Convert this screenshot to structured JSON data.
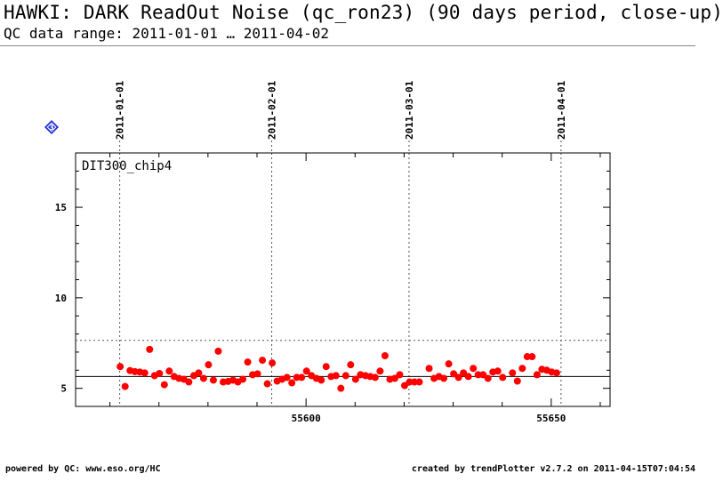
{
  "header": {
    "title": "HAWKI: DARK ReadOut Noise (qc_ron23) (90 days period, close-up)",
    "subtitle": "QC data range: 2011-01-01 … 2011-04-02"
  },
  "badge": {
    "label": "3",
    "color": "#1f2fd6"
  },
  "footer": {
    "left": "powered by QC: www.eso.org/HC",
    "right": "created by trendPlotter v2.7.2 on 2011-04-15T07:04:54"
  },
  "chart_data": {
    "type": "scatter",
    "title": "DIT300_chip4",
    "xlabel": "",
    "ylabel": "",
    "xlim": [
      55553,
      55662
    ],
    "ylim": [
      4,
      18
    ],
    "xticks": [
      55600,
      55650
    ],
    "yticks": [
      5,
      10,
      15
    ],
    "date_markers": [
      {
        "label": "2011-01-01",
        "x": 55562
      },
      {
        "label": "2011-02-01",
        "x": 55593
      },
      {
        "label": "2011-03-01",
        "x": 55621
      },
      {
        "label": "2011-04-01",
        "x": 55652
      }
    ],
    "reference_lines": {
      "mean": 5.65,
      "upper_limit": 7.65
    },
    "point_color": "#ff0000",
    "points": [
      [
        55562.1,
        6.2
      ],
      [
        55563.1,
        5.1
      ],
      [
        55564.1,
        5.98
      ],
      [
        55565.1,
        5.92
      ],
      [
        55566.1,
        5.9
      ],
      [
        55567.1,
        5.85
      ],
      [
        55568.1,
        7.15
      ],
      [
        55569.1,
        5.7
      ],
      [
        55570.1,
        5.82
      ],
      [
        55571.1,
        5.2
      ],
      [
        55572.1,
        5.95
      ],
      [
        55573.1,
        5.65
      ],
      [
        55574.1,
        5.55
      ],
      [
        55575.1,
        5.5
      ],
      [
        55576.1,
        5.35
      ],
      [
        55577.1,
        5.7
      ],
      [
        55578.1,
        5.85
      ],
      [
        55579.1,
        5.55
      ],
      [
        55580.1,
        6.3
      ],
      [
        55581.1,
        5.45
      ],
      [
        55582.1,
        7.05
      ],
      [
        55583.1,
        5.35
      ],
      [
        55584.1,
        5.38
      ],
      [
        55585.1,
        5.45
      ],
      [
        55586.1,
        5.35
      ],
      [
        55587.1,
        5.5
      ],
      [
        55588.1,
        6.45
      ],
      [
        55589.1,
        5.75
      ],
      [
        55590.1,
        5.8
      ],
      [
        55591.1,
        6.55
      ],
      [
        55592.1,
        5.25
      ],
      [
        55593.1,
        6.4
      ],
      [
        55594.1,
        5.4
      ],
      [
        55595.1,
        5.5
      ],
      [
        55596.1,
        5.6
      ],
      [
        55597.1,
        5.3
      ],
      [
        55598.1,
        5.6
      ],
      [
        55599.1,
        5.6
      ],
      [
        55600.1,
        5.95
      ],
      [
        55601.1,
        5.7
      ],
      [
        55602.1,
        5.55
      ],
      [
        55603.1,
        5.45
      ],
      [
        55604.1,
        6.2
      ],
      [
        55605.1,
        5.65
      ],
      [
        55606.1,
        5.7
      ],
      [
        55607.1,
        5.0
      ],
      [
        55608.1,
        5.7
      ],
      [
        55609.1,
        6.3
      ],
      [
        55610.1,
        5.5
      ],
      [
        55611.1,
        5.75
      ],
      [
        55612.1,
        5.7
      ],
      [
        55613.1,
        5.65
      ],
      [
        55614.1,
        5.6
      ],
      [
        55615.1,
        5.95
      ],
      [
        55616.1,
        6.8
      ],
      [
        55617.1,
        5.5
      ],
      [
        55618.1,
        5.55
      ],
      [
        55619.1,
        5.75
      ],
      [
        55620.1,
        5.15
      ],
      [
        55621.1,
        5.35
      ],
      [
        55622.1,
        5.35
      ],
      [
        55623.1,
        5.35
      ],
      [
        55625.1,
        6.1
      ],
      [
        55626.1,
        5.55
      ],
      [
        55627.1,
        5.65
      ],
      [
        55628.1,
        5.55
      ],
      [
        55629.1,
        6.35
      ],
      [
        55630.1,
        5.8
      ],
      [
        55631.1,
        5.6
      ],
      [
        55632.1,
        5.85
      ],
      [
        55633.1,
        5.65
      ],
      [
        55634.1,
        6.1
      ],
      [
        55635.1,
        5.75
      ],
      [
        55636.1,
        5.75
      ],
      [
        55637.1,
        5.55
      ],
      [
        55638.1,
        5.9
      ],
      [
        55639.1,
        5.95
      ],
      [
        55640.1,
        5.6
      ],
      [
        55642.1,
        5.85
      ],
      [
        55643.1,
        5.4
      ],
      [
        55644.1,
        6.1
      ],
      [
        55645.1,
        6.75
      ],
      [
        55646.1,
        6.75
      ],
      [
        55647.1,
        5.75
      ],
      [
        55648.1,
        6.05
      ],
      [
        55649.1,
        6.0
      ],
      [
        55650.1,
        5.9
      ],
      [
        55651.1,
        5.85
      ]
    ]
  }
}
